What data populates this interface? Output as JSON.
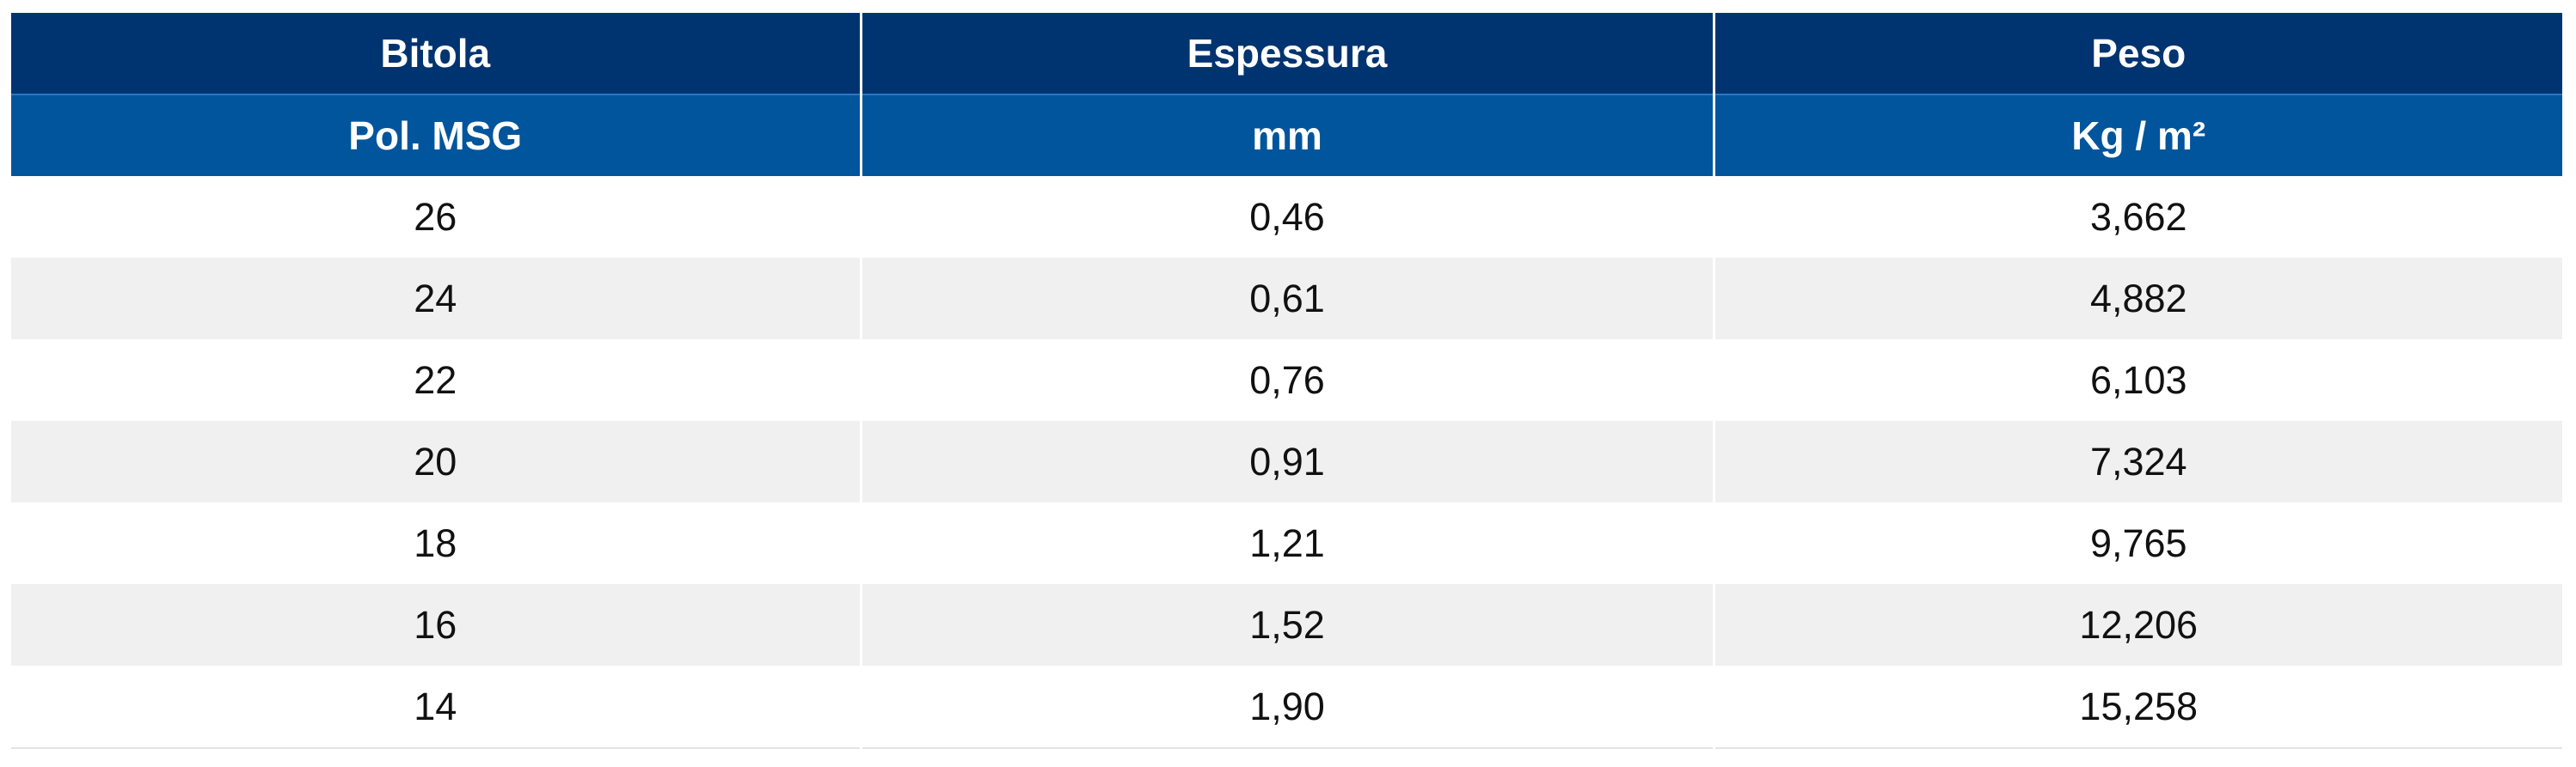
{
  "table": {
    "header": [
      [
        "Bitola",
        "Espessura",
        "Peso"
      ],
      [
        "Pol. MSG",
        "mm",
        "Kg / m²"
      ]
    ],
    "rows": [
      [
        "26",
        "0,46",
        "3,662"
      ],
      [
        "24",
        "0,61",
        "4,882"
      ],
      [
        "22",
        "0,76",
        "6,103"
      ],
      [
        "20",
        "0,91",
        "7,324"
      ],
      [
        "18",
        "1,21",
        "9,765"
      ],
      [
        "16",
        "1,52",
        "12,206"
      ],
      [
        "14",
        "1,90",
        "15,258"
      ]
    ]
  }
}
